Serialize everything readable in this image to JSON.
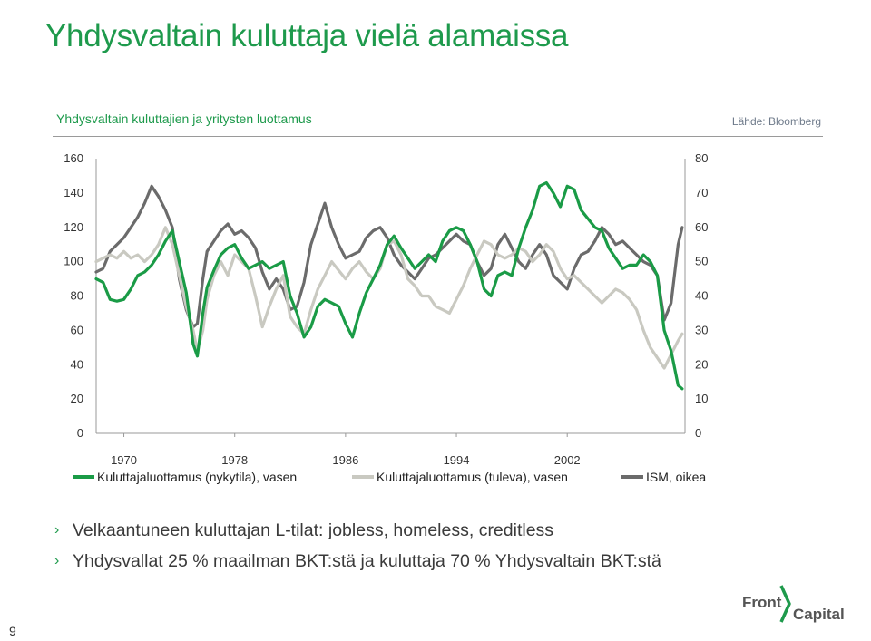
{
  "slide": {
    "title": "Yhdysvaltain kuluttaja vielä alamaissa",
    "chart_title": "Yhdysvaltain kuluttajien ja yritysten luottamus",
    "source": "Lähde: Bloomberg",
    "page_number": "9",
    "bullets": [
      "Velkaantuneen kuluttajan L-tilat: jobless, homeless, creditless",
      "Yhdysvallat 25 % maailman BKT:stä ja kuluttaja 70 % Yhdysvaltain BKT:stä"
    ],
    "logo": {
      "word1": "Front",
      "word2": "Capital"
    }
  },
  "colors": {
    "title_green": "#1e9a4c",
    "series_current": "#1a9b46",
    "series_expect": "#c9c9c1",
    "series_ism": "#6b6b6b"
  },
  "chart_data": {
    "type": "line",
    "x_ticks": [
      1970,
      1978,
      1986,
      1994,
      2002
    ],
    "x_range": [
      1968,
      2010.5
    ],
    "y_left": {
      "range": [
        0,
        160
      ],
      "ticks": [
        0,
        20,
        40,
        60,
        80,
        100,
        120,
        140,
        160
      ]
    },
    "y_right": {
      "range": [
        0,
        80
      ],
      "ticks": [
        0,
        10,
        20,
        30,
        40,
        50,
        60,
        70,
        80
      ]
    },
    "grid": false,
    "legend_position": "bottom",
    "series": [
      {
        "name": "Kuluttajaluottamus (nykytila), vasen",
        "axis": "left",
        "color": "#1a9b46",
        "points": [
          [
            1968,
            90
          ],
          [
            1968.5,
            88
          ],
          [
            1969,
            78
          ],
          [
            1969.5,
            77
          ],
          [
            1970,
            78
          ],
          [
            1970.5,
            84
          ],
          [
            1971,
            92
          ],
          [
            1971.5,
            94
          ],
          [
            1972,
            98
          ],
          [
            1972.5,
            104
          ],
          [
            1973,
            112
          ],
          [
            1973.5,
            118
          ],
          [
            1974,
            100
          ],
          [
            1974.5,
            82
          ],
          [
            1975,
            52
          ],
          [
            1975.3,
            45
          ],
          [
            1975.7,
            70
          ],
          [
            1976,
            85
          ],
          [
            1976.5,
            95
          ],
          [
            1977,
            104
          ],
          [
            1977.5,
            108
          ],
          [
            1978,
            110
          ],
          [
            1978.5,
            102
          ],
          [
            1979,
            96
          ],
          [
            1979.5,
            98
          ],
          [
            1980,
            100
          ],
          [
            1980.5,
            96
          ],
          [
            1981,
            98
          ],
          [
            1981.5,
            100
          ],
          [
            1982,
            80
          ],
          [
            1982.5,
            70
          ],
          [
            1983,
            56
          ],
          [
            1983.5,
            62
          ],
          [
            1984,
            74
          ],
          [
            1984.5,
            78
          ],
          [
            1985,
            76
          ],
          [
            1985.5,
            74
          ],
          [
            1986,
            64
          ],
          [
            1986.5,
            56
          ],
          [
            1987,
            70
          ],
          [
            1987.5,
            82
          ],
          [
            1988,
            90
          ],
          [
            1988.5,
            98
          ],
          [
            1989,
            110
          ],
          [
            1989.5,
            115
          ],
          [
            1990,
            108
          ],
          [
            1990.5,
            102
          ],
          [
            1991,
            96
          ],
          [
            1991.5,
            100
          ],
          [
            1992,
            104
          ],
          [
            1992.5,
            100
          ],
          [
            1993,
            112
          ],
          [
            1993.5,
            118
          ],
          [
            1994,
            120
          ],
          [
            1994.5,
            118
          ],
          [
            1995,
            110
          ],
          [
            1995.5,
            100
          ],
          [
            1996,
            84
          ],
          [
            1996.5,
            80
          ],
          [
            1997,
            92
          ],
          [
            1997.5,
            94
          ],
          [
            1998,
            92
          ],
          [
            1998.5,
            108
          ],
          [
            1999,
            120
          ],
          [
            1999.5,
            130
          ],
          [
            2000,
            144
          ],
          [
            2000.5,
            146
          ],
          [
            2001,
            140
          ],
          [
            2001.5,
            132
          ],
          [
            2002,
            144
          ],
          [
            2002.5,
            142
          ],
          [
            2003,
            130
          ],
          [
            2003.5,
            125
          ],
          [
            2004,
            120
          ],
          [
            2004.5,
            118
          ],
          [
            2005,
            108
          ],
          [
            2005.5,
            102
          ],
          [
            2006,
            96
          ],
          [
            2006.5,
            98
          ],
          [
            2007,
            98
          ],
          [
            2007.5,
            104
          ],
          [
            2008,
            100
          ],
          [
            2008.5,
            92
          ],
          [
            2009,
            60
          ],
          [
            2009.5,
            48
          ],
          [
            2010,
            28
          ],
          [
            2010.3,
            26
          ]
        ]
      },
      {
        "name": "Kuluttajaluottamus (tuleva), vasen",
        "axis": "left",
        "color": "#c9c9c1",
        "points": [
          [
            1968,
            100
          ],
          [
            1968.5,
            102
          ],
          [
            1969,
            104
          ],
          [
            1969.5,
            102
          ],
          [
            1970,
            106
          ],
          [
            1970.5,
            102
          ],
          [
            1971,
            104
          ],
          [
            1971.5,
            100
          ],
          [
            1972,
            104
          ],
          [
            1972.5,
            110
          ],
          [
            1973,
            120
          ],
          [
            1973.5,
            110
          ],
          [
            1974,
            92
          ],
          [
            1974.5,
            74
          ],
          [
            1975,
            60
          ],
          [
            1975.3,
            48
          ],
          [
            1975.7,
            60
          ],
          [
            1976,
            78
          ],
          [
            1976.5,
            92
          ],
          [
            1977,
            100
          ],
          [
            1977.5,
            92
          ],
          [
            1978,
            104
          ],
          [
            1978.5,
            100
          ],
          [
            1979,
            96
          ],
          [
            1979.5,
            80
          ],
          [
            1980,
            62
          ],
          [
            1980.5,
            74
          ],
          [
            1981,
            84
          ],
          [
            1981.5,
            92
          ],
          [
            1982,
            68
          ],
          [
            1982.5,
            62
          ],
          [
            1983,
            58
          ],
          [
            1983.5,
            72
          ],
          [
            1984,
            84
          ],
          [
            1984.5,
            92
          ],
          [
            1985,
            100
          ],
          [
            1985.5,
            95
          ],
          [
            1986,
            90
          ],
          [
            1986.5,
            96
          ],
          [
            1987,
            100
          ],
          [
            1987.5,
            94
          ],
          [
            1988,
            90
          ],
          [
            1988.5,
            96
          ],
          [
            1989,
            110
          ],
          [
            1989.5,
            112
          ],
          [
            1990,
            104
          ],
          [
            1990.5,
            90
          ],
          [
            1991,
            86
          ],
          [
            1991.5,
            80
          ],
          [
            1992,
            80
          ],
          [
            1992.5,
            74
          ],
          [
            1993,
            72
          ],
          [
            1993.5,
            70
          ],
          [
            1994,
            78
          ],
          [
            1994.5,
            86
          ],
          [
            1995,
            96
          ],
          [
            1995.5,
            104
          ],
          [
            1996,
            112
          ],
          [
            1996.5,
            110
          ],
          [
            1997,
            104
          ],
          [
            1997.5,
            102
          ],
          [
            1998,
            104
          ],
          [
            1998.5,
            108
          ],
          [
            1999,
            106
          ],
          [
            1999.5,
            100
          ],
          [
            2000,
            104
          ],
          [
            2000.5,
            110
          ],
          [
            2001,
            106
          ],
          [
            2001.5,
            96
          ],
          [
            2002,
            90
          ],
          [
            2002.5,
            92
          ],
          [
            2003,
            88
          ],
          [
            2003.5,
            84
          ],
          [
            2004,
            80
          ],
          [
            2004.5,
            76
          ],
          [
            2005,
            80
          ],
          [
            2005.5,
            84
          ],
          [
            2006,
            82
          ],
          [
            2006.5,
            78
          ],
          [
            2007,
            72
          ],
          [
            2007.5,
            60
          ],
          [
            2008,
            50
          ],
          [
            2008.5,
            44
          ],
          [
            2009,
            38
          ],
          [
            2009.5,
            46
          ],
          [
            2010,
            54
          ],
          [
            2010.3,
            58
          ]
        ]
      },
      {
        "name": "ISM, oikea",
        "axis": "right",
        "color": "#6b6b6b",
        "points": [
          [
            1968,
            47
          ],
          [
            1968.5,
            48
          ],
          [
            1969,
            53
          ],
          [
            1969.5,
            55
          ],
          [
            1970,
            57
          ],
          [
            1970.5,
            60
          ],
          [
            1971,
            63
          ],
          [
            1971.5,
            67
          ],
          [
            1972,
            72
          ],
          [
            1972.5,
            69
          ],
          [
            1973,
            65
          ],
          [
            1973.5,
            60
          ],
          [
            1974,
            45
          ],
          [
            1974.5,
            36
          ],
          [
            1975,
            31
          ],
          [
            1975.3,
            32
          ],
          [
            1975.7,
            45
          ],
          [
            1976,
            53
          ],
          [
            1976.5,
            56
          ],
          [
            1977,
            59
          ],
          [
            1977.5,
            61
          ],
          [
            1978,
            58
          ],
          [
            1978.5,
            59
          ],
          [
            1979,
            57
          ],
          [
            1979.5,
            54
          ],
          [
            1980,
            47
          ],
          [
            1980.5,
            42
          ],
          [
            1981,
            45
          ],
          [
            1981.5,
            42
          ],
          [
            1982,
            36
          ],
          [
            1982.5,
            37
          ],
          [
            1983,
            44
          ],
          [
            1983.5,
            55
          ],
          [
            1984,
            61
          ],
          [
            1984.5,
            67
          ],
          [
            1985,
            60
          ],
          [
            1985.5,
            55
          ],
          [
            1986,
            51
          ],
          [
            1986.5,
            52
          ],
          [
            1987,
            53
          ],
          [
            1987.5,
            57
          ],
          [
            1988,
            59
          ],
          [
            1988.5,
            60
          ],
          [
            1989,
            57
          ],
          [
            1989.5,
            52
          ],
          [
            1990,
            49
          ],
          [
            1990.5,
            47
          ],
          [
            1991,
            45
          ],
          [
            1991.5,
            48
          ],
          [
            1992,
            51
          ],
          [
            1992.5,
            52
          ],
          [
            1993,
            54
          ],
          [
            1993.5,
            56
          ],
          [
            1994,
            58
          ],
          [
            1994.5,
            56
          ],
          [
            1995,
            55
          ],
          [
            1995.5,
            50
          ],
          [
            1996,
            46
          ],
          [
            1996.5,
            48
          ],
          [
            1997,
            55
          ],
          [
            1997.5,
            58
          ],
          [
            1998,
            54
          ],
          [
            1998.5,
            50
          ],
          [
            1999,
            48
          ],
          [
            1999.5,
            52
          ],
          [
            2000,
            55
          ],
          [
            2000.5,
            52
          ],
          [
            2001,
            46
          ],
          [
            2001.5,
            44
          ],
          [
            2002,
            42
          ],
          [
            2002.5,
            48
          ],
          [
            2003,
            52
          ],
          [
            2003.5,
            53
          ],
          [
            2004,
            56
          ],
          [
            2004.5,
            60
          ],
          [
            2005,
            58
          ],
          [
            2005.5,
            55
          ],
          [
            2006,
            56
          ],
          [
            2006.5,
            54
          ],
          [
            2007,
            52
          ],
          [
            2007.5,
            50
          ],
          [
            2008,
            49
          ],
          [
            2008.5,
            46
          ],
          [
            2009,
            33
          ],
          [
            2009.5,
            38
          ],
          [
            2010,
            55
          ],
          [
            2010.3,
            60
          ]
        ]
      }
    ]
  }
}
